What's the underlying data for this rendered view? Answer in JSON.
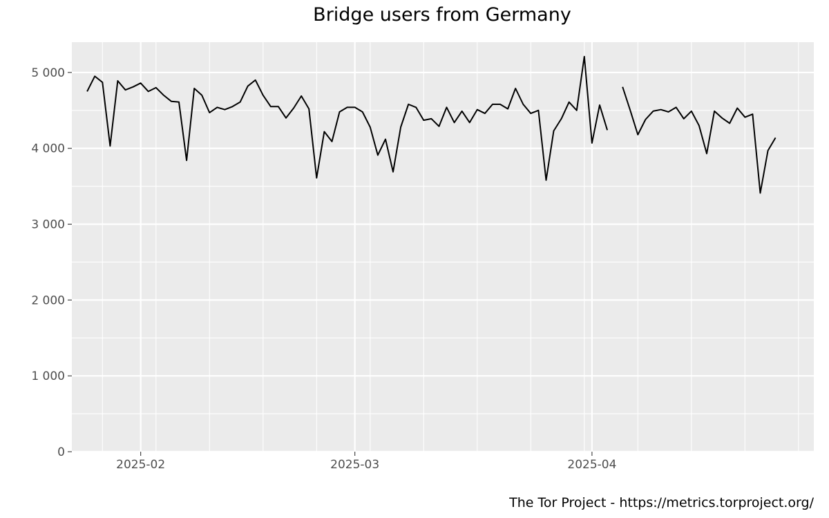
{
  "chart_data": {
    "type": "line",
    "title": "Bridge users from Germany",
    "caption": "The Tor Project - https://metrics.torproject.org/",
    "xlabel": "",
    "ylabel": "",
    "ylim": [
      0,
      5400
    ],
    "xlim": [
      "2025-01-23",
      "2025-04-30"
    ],
    "y_ticks": [
      0,
      1000,
      2000,
      3000,
      4000,
      5000
    ],
    "y_tick_labels": [
      "0",
      "1 000",
      "2 000",
      "3 000",
      "4 000",
      "5 000"
    ],
    "x_ticks": [
      "2025-02-01",
      "2025-03-01",
      "2025-04-01"
    ],
    "x_tick_labels": [
      "2025-02",
      "2025-03",
      "2025-04"
    ],
    "grid": true,
    "legend": "none",
    "colors": {
      "panel": "#ebebeb",
      "grid": "#ffffff",
      "line": "#000000"
    },
    "series": [
      {
        "x": [
          "2025-01-25",
          "2025-01-26",
          "2025-01-27",
          "2025-01-28",
          "2025-01-29",
          "2025-01-30",
          "2025-01-31",
          "2025-02-01",
          "2025-02-02",
          "2025-02-03",
          "2025-02-04",
          "2025-02-05",
          "2025-02-06",
          "2025-02-07",
          "2025-02-08",
          "2025-02-09",
          "2025-02-10",
          "2025-02-11",
          "2025-02-12",
          "2025-02-13",
          "2025-02-14",
          "2025-02-15",
          "2025-02-16",
          "2025-02-17",
          "2025-02-18",
          "2025-02-19",
          "2025-02-20",
          "2025-02-21",
          "2025-02-22",
          "2025-02-23",
          "2025-02-24",
          "2025-02-25",
          "2025-02-26",
          "2025-02-27",
          "2025-02-28",
          "2025-03-01",
          "2025-03-02",
          "2025-03-03",
          "2025-03-04",
          "2025-03-05",
          "2025-03-06",
          "2025-03-07",
          "2025-03-08",
          "2025-03-09",
          "2025-03-10",
          "2025-03-11",
          "2025-03-12",
          "2025-03-13",
          "2025-03-14",
          "2025-03-15",
          "2025-03-16",
          "2025-03-17",
          "2025-03-18",
          "2025-03-19",
          "2025-03-20",
          "2025-03-21",
          "2025-03-22",
          "2025-03-23",
          "2025-03-24",
          "2025-03-25",
          "2025-03-26",
          "2025-03-27",
          "2025-03-28",
          "2025-03-29",
          "2025-03-30",
          "2025-03-31",
          "2025-04-01",
          "2025-04-02",
          "2025-04-03",
          "2025-04-04",
          "2025-04-05",
          "2025-04-06",
          "2025-04-07",
          "2025-04-08",
          "2025-04-09",
          "2025-04-10",
          "2025-04-11",
          "2025-04-12",
          "2025-04-13",
          "2025-04-14",
          "2025-04-15",
          "2025-04-16",
          "2025-04-17",
          "2025-04-18",
          "2025-04-19",
          "2025-04-20",
          "2025-04-21",
          "2025-04-22",
          "2025-04-23",
          "2025-04-24",
          "2025-04-25",
          "2025-04-26",
          "2025-04-27"
        ],
        "values": [
          4750,
          4950,
          4870,
          4030,
          4890,
          4770,
          4810,
          4860,
          4750,
          4800,
          4700,
          4620,
          4610,
          3840,
          4790,
          4700,
          4470,
          4540,
          4510,
          4550,
          4610,
          4820,
          4900,
          4700,
          4550,
          4550,
          4400,
          4530,
          4690,
          4520,
          3610,
          4220,
          4090,
          4480,
          4540,
          4540,
          4480,
          4280,
          3910,
          4120,
          3690,
          4280,
          4580,
          4540,
          4370,
          4390,
          4290,
          4540,
          4340,
          4490,
          4340,
          4510,
          4460,
          4580,
          4580,
          4520,
          4790,
          4580,
          4460,
          4500,
          3580,
          4230,
          4390,
          4610,
          4500,
          5210,
          4070,
          4570,
          4240,
          null,
          4810,
          4500,
          4180,
          4380,
          4490,
          4510,
          4480,
          4540,
          4390,
          4490,
          4300,
          3930,
          4490,
          4400,
          4330,
          4530,
          4410,
          4450,
          3410,
          3970,
          4140,
          null,
          null
        ]
      }
    ]
  }
}
